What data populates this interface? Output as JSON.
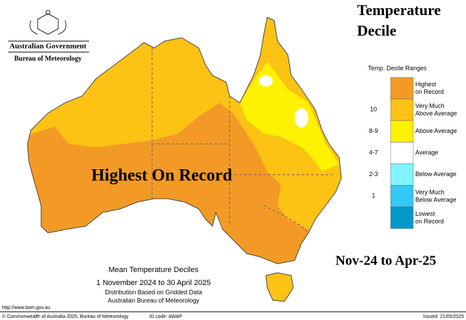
{
  "header": {
    "agency": "Australian Government",
    "bureau": "Bureau of Meteorology",
    "title": [
      "Temperature",
      "Decile"
    ]
  },
  "legend": {
    "title": "Temp. Decile Ranges",
    "items": [
      {
        "label": "Highest on Record",
        "color": "#f39a26"
      },
      {
        "range": "10",
        "label": "Very Much Above Average",
        "color": "#fcc214"
      },
      {
        "range": "8-9",
        "label": "Above Average",
        "color": "#fff200"
      },
      {
        "range": "4-7",
        "label": "Average",
        "color": "#ffffff"
      },
      {
        "range": "2-3",
        "label": "Below Average",
        "color": "#7ff4ff"
      },
      {
        "range": "1",
        "label": "Very Much Below Average",
        "color": "#33c8f6"
      },
      {
        "label": "Lowest on Record",
        "color": "#0597c9"
      }
    ]
  },
  "annotations": {
    "main": "Highest On Record",
    "period": "Nov-24 to Apr-25"
  },
  "caption": [
    "Mean Temperature Deciles",
    "1 November 2024 to 30 April 2025",
    "Distribution Based on Gridded Data",
    "Australian Bureau of Meteorology"
  ],
  "footer": {
    "url": "http://www.bom.gov.au",
    "copyright": "© Commonwealth of Australia 2025, Bureau of Meteorology",
    "id": "ID code: AWAP",
    "issued": "Issued: 21/05/2025"
  }
}
